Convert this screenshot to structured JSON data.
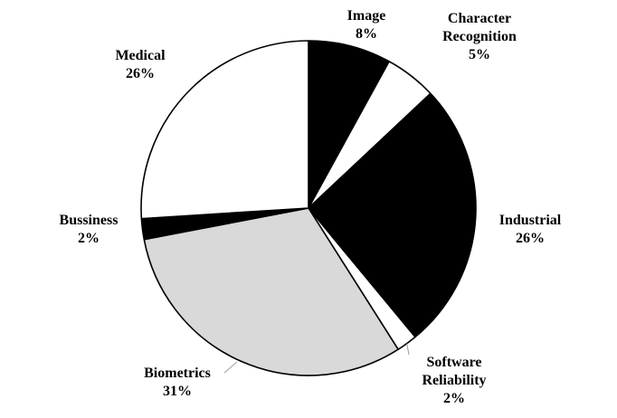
{
  "chart_data": {
    "type": "pie",
    "title": "",
    "start_angle_deg": 0,
    "direction": "clockwise",
    "slices": [
      {
        "label": "Image",
        "value": 8,
        "value_label": "8%",
        "color": "#000000"
      },
      {
        "label": "Character Recognition",
        "value": 5,
        "value_label": "5%",
        "color": "#ffffff"
      },
      {
        "label": "Industrial",
        "value": 26,
        "value_label": "26%",
        "color": "#000000"
      },
      {
        "label": "Software Reliability",
        "value": 2,
        "value_label": "2%",
        "color": "#ffffff"
      },
      {
        "label": "Biometrics",
        "value": 31,
        "value_label": "31%",
        "color": "#d9d9d9"
      },
      {
        "label": "Bussiness",
        "value": 2,
        "value_label": "2%",
        "color": "#000000"
      },
      {
        "label": "Medical",
        "value": 26,
        "value_label": "26%",
        "color": "#ffffff"
      }
    ],
    "legend": "none",
    "label_lines": {
      "Image": [
        "Image",
        "8%"
      ],
      "Character Recognition": [
        "Character",
        "Recognition",
        "5%"
      ],
      "Industrial": [
        "Industrial",
        "26%"
      ],
      "Software Reliability": [
        "Software",
        "Reliability",
        "2%"
      ],
      "Biometrics": [
        "Biometrics",
        "31%"
      ],
      "Bussiness": [
        "Bussiness",
        "2%"
      ],
      "Medical": [
        "Medical",
        "26%"
      ]
    }
  }
}
